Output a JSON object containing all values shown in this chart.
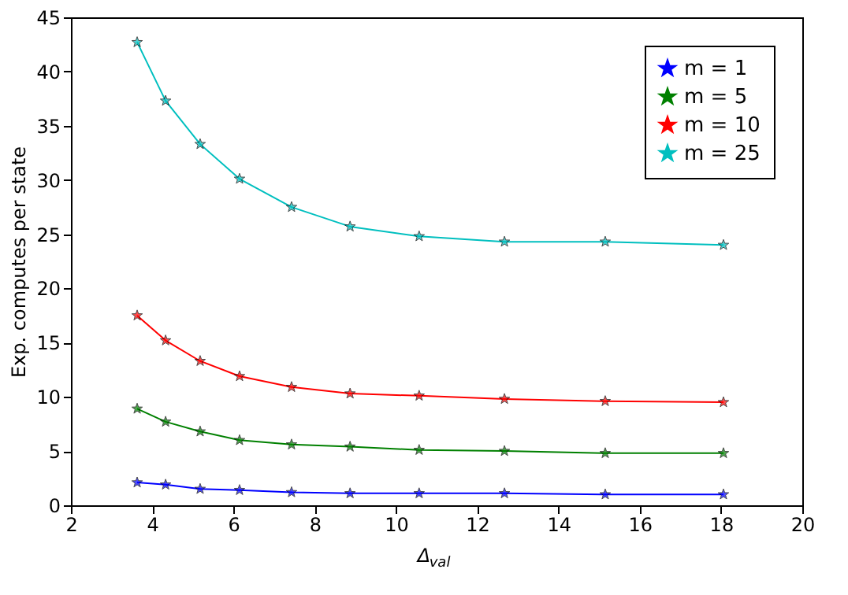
{
  "chart_data": {
    "type": "line",
    "xlabel": "Δ$_{val}$",
    "ylabel": "Exp. computes per state",
    "x": [
      3.63,
      4.33,
      5.18,
      6.15,
      7.43,
      8.87,
      10.57,
      12.67,
      15.15,
      18.06
    ],
    "series": [
      {
        "name": "m = 1",
        "color": "#0000ff",
        "values": [
          2.1,
          1.9,
          1.5,
          1.4,
          1.2,
          1.1,
          1.1,
          1.1,
          1.0,
          1.0
        ]
      },
      {
        "name": "m = 5",
        "color": "#008000",
        "values": [
          8.9,
          7.7,
          6.8,
          6.0,
          5.6,
          5.4,
          5.1,
          5.0,
          4.8,
          4.8
        ]
      },
      {
        "name": "m = 10",
        "color": "#ff0000",
        "values": [
          17.5,
          15.2,
          13.3,
          11.9,
          10.9,
          10.3,
          10.1,
          9.8,
          9.6,
          9.5
        ]
      },
      {
        "name": "m = 25",
        "color": "#00bfbf",
        "values": [
          42.7,
          37.3,
          33.3,
          30.1,
          27.5,
          25.7,
          24.8,
          24.3,
          24.3,
          24.0
        ]
      }
    ],
    "xlim": [
      2,
      20
    ],
    "xticks": [
      2,
      4,
      6,
      8,
      10,
      12,
      14,
      16,
      18,
      20
    ],
    "ylim": [
      0,
      45
    ],
    "yticks": [
      0,
      5,
      10,
      15,
      20,
      25,
      30,
      35,
      40,
      45
    ],
    "grid": false,
    "legend": "top right",
    "marker": "star",
    "line_style": "solid"
  }
}
